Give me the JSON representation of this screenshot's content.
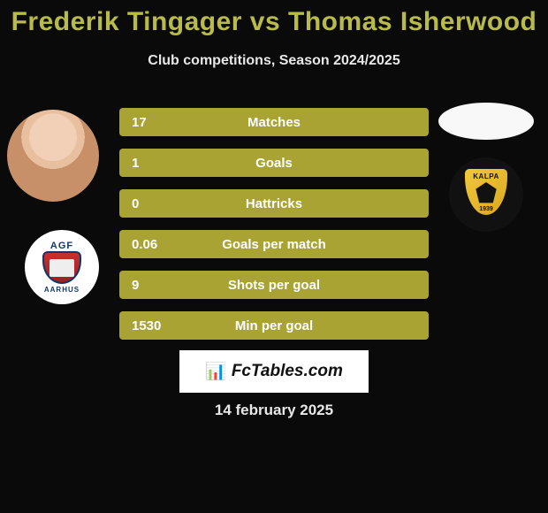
{
  "title": "Frederik Tingager vs Thomas Isherwood",
  "subtitle": "Club competitions, Season 2024/2025",
  "colors": {
    "title": "#b8bb4a",
    "bar": "#a8a332",
    "background": "#0a0a0a"
  },
  "stats": [
    {
      "value": "17",
      "label": "Matches"
    },
    {
      "value": "1",
      "label": "Goals"
    },
    {
      "value": "0",
      "label": "Hattricks"
    },
    {
      "value": "0.06",
      "label": "Goals per match"
    },
    {
      "value": "9",
      "label": "Shots per goal"
    },
    {
      "value": "1530",
      "label": "Min per goal"
    }
  ],
  "brand": {
    "icon": "📊",
    "text": "FcTables.com"
  },
  "date": "14 february 2025",
  "left_club": {
    "top_text": "AGF",
    "bottom_text": "AARHUS"
  },
  "right_club": {
    "name": "KALPA",
    "year": "1939"
  }
}
